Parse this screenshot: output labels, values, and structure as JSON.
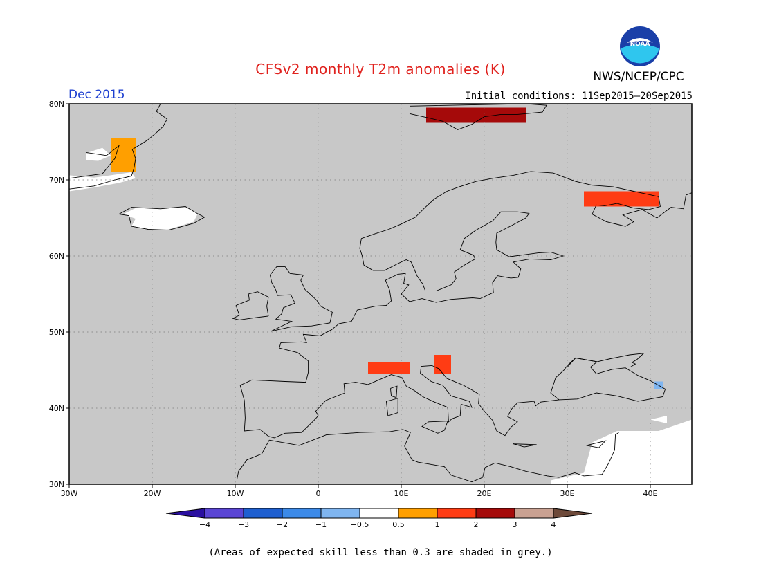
{
  "title": "CFSv2 monthly T2m anomalies (K)",
  "organization": "NWS/NCEP/CPC",
  "logo_text": "NOAA",
  "forecast_month": "Dec 2015",
  "initial_conditions": "Initial conditions: 11Sep2015—20Sep2015",
  "footnote": "(Areas of expected skill less than 0.3 are shaded in grey.)",
  "map": {
    "projection": "lat-lon",
    "lon_range": [
      -30,
      45
    ],
    "lat_range": [
      30,
      80
    ],
    "x_ticks": [
      "30W",
      "20W",
      "10W",
      "0",
      "10E",
      "20E",
      "30E",
      "40E"
    ],
    "x_tick_values": [
      -30,
      -20,
      -10,
      0,
      10,
      20,
      30,
      40
    ],
    "y_ticks": [
      "30N",
      "40N",
      "50N",
      "60N",
      "70N",
      "80N"
    ],
    "y_tick_values": [
      30,
      40,
      50,
      60,
      70,
      80
    ],
    "grid": "dotted",
    "background_color": "#c8c8c8",
    "coast_color": "#000000"
  },
  "colorbar": {
    "labels": [
      "−4",
      "−3",
      "−2",
      "−1",
      "−0.5",
      "0.5",
      "1",
      "2",
      "3",
      "4"
    ],
    "colors": [
      "#2a0fa0",
      "#5a45d4",
      "#1e5fd0",
      "#3c8ae8",
      "#7fb5f0",
      "#ffffff",
      "#ff9f00",
      "#ff3c14",
      "#a50a0a",
      "#c9a192",
      "#6e4a3a"
    ]
  },
  "regions": {
    "low_skill_color": "#c8c8c8",
    "near_normal_color": "#ffffff",
    "anomaly_patches": [
      {
        "area": "Greenland coast",
        "lon_range": [
          -25,
          -22
        ],
        "lat_range": [
          71,
          75.5
        ],
        "category": "0.5 to 1",
        "color": "#ff9f00"
      },
      {
        "area": "Svalbard",
        "lon_range": [
          13,
          25
        ],
        "lat_range": [
          77.5,
          79.5
        ],
        "category": "2 to 4",
        "color": "#a50a0a"
      },
      {
        "area": "Kola Peninsula",
        "lon_range": [
          32,
          41
        ],
        "lat_range": [
          66.5,
          68.5
        ],
        "category": "1 to 2",
        "color": "#ff3c14"
      },
      {
        "area": "Alps",
        "lon_range": [
          6,
          11
        ],
        "lat_range": [
          44.5,
          46
        ],
        "category": "1 to 2",
        "color": "#ff3c14"
      },
      {
        "area": "Slovenia / Croatia",
        "lon_range": [
          14,
          16
        ],
        "lat_range": [
          44.5,
          47
        ],
        "category": "1 to 2",
        "color": "#ff3c14"
      },
      {
        "area": "Caucasus",
        "lon_range": [
          40.5,
          41.5
        ],
        "lat_range": [
          42.5,
          43.5
        ],
        "category": "-1 to -0.5",
        "color": "#7fb5f0"
      }
    ]
  }
}
